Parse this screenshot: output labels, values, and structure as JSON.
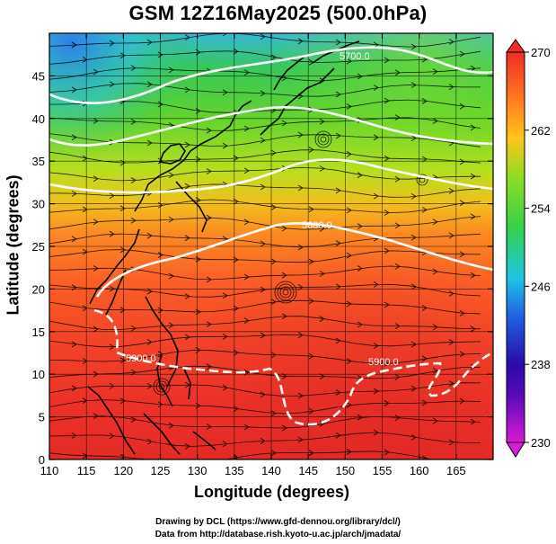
{
  "title": "GSM 12Z16May2025 (500.0hPa)",
  "xaxis": {
    "label": "Longitude (degrees)",
    "range": [
      110,
      170
    ],
    "ticks": [
      "110",
      "115",
      "120",
      "125",
      "130",
      "135",
      "140",
      "145",
      "150",
      "155",
      "160",
      "165"
    ]
  },
  "yaxis": {
    "label": "Latitude  (degrees)",
    "range": [
      0,
      50
    ],
    "ticks": [
      "0",
      "5",
      "10",
      "15",
      "20",
      "25",
      "30",
      "35",
      "40",
      "45"
    ]
  },
  "colorbar": {
    "ticks": [
      "230",
      "238",
      "246",
      "254",
      "262",
      "270"
    ],
    "range": [
      230,
      270
    ],
    "colors": [
      "#d81bd6",
      "#2a0aa8",
      "#1f5fe0",
      "#1ec4e6",
      "#35d24c",
      "#d6e31a",
      "#ff9b1a",
      "#ff4b26",
      "#e8202a"
    ]
  },
  "contours": [
    {
      "label": "5700.0"
    },
    {
      "label": "5800.0"
    },
    {
      "label": "5900.0"
    },
    {
      "label": "5900.0"
    }
  ],
  "credits": [
    "Drawing by DCL (https://www.gfd-dennou.org/library/dcl/)",
    "Data from http://database.rish.kyoto-u.ac.jp/arch/jmadata/"
  ]
}
